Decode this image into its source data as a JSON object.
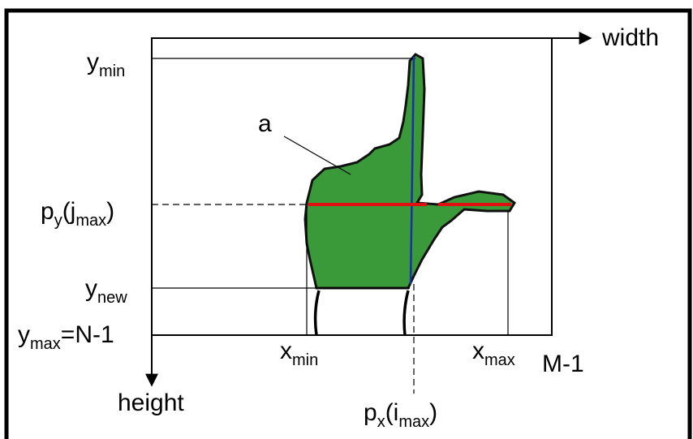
{
  "axes": {
    "horizontal": "width",
    "vertical": "height"
  },
  "region_label": "a",
  "labels": {
    "y_min": [
      "y",
      "min"
    ],
    "p_y_j_max": [
      "p",
      "y",
      "(j",
      "max",
      ")"
    ],
    "y_new": [
      "y",
      "new"
    ],
    "y_max": [
      "y",
      "max",
      "=N-1"
    ],
    "x_min": [
      "x",
      "min"
    ],
    "x_max": [
      "x",
      "max"
    ],
    "m_minus_1": "M-1",
    "p_x_i_max": [
      "p",
      "x",
      "(i",
      "max",
      ")"
    ]
  }
}
